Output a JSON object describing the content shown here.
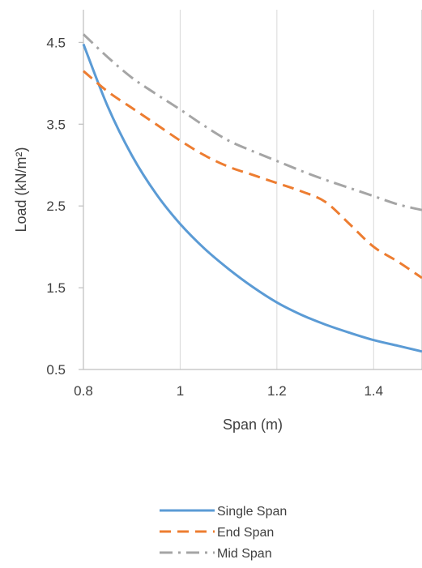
{
  "chart_data": {
    "type": "line",
    "title": "",
    "xlabel": "Span (m)",
    "ylabel": "Load (kN/m²)",
    "xlim": [
      0.8,
      1.5
    ],
    "ylim": [
      0.5,
      4.9
    ],
    "x_ticks": [
      0.8,
      1.0,
      1.2,
      1.4
    ],
    "x_tick_labels": [
      "0.8",
      "1",
      "1.2",
      "1.4"
    ],
    "y_ticks": [
      0.5,
      1.5,
      2.5,
      3.5,
      4.5
    ],
    "y_tick_labels": [
      "0.5",
      "1.5",
      "2.5",
      "3.5",
      "4.5"
    ],
    "grid": "vertical",
    "legend_position": "bottom",
    "series": [
      {
        "name": "Single Span",
        "color": "#5B9BD5",
        "dash": "solid",
        "points": [
          [
            0.8,
            4.48
          ],
          [
            0.85,
            3.72
          ],
          [
            0.9,
            3.12
          ],
          [
            0.95,
            2.65
          ],
          [
            1.0,
            2.28
          ],
          [
            1.05,
            1.98
          ],
          [
            1.1,
            1.73
          ],
          [
            1.15,
            1.51
          ],
          [
            1.2,
            1.32
          ],
          [
            1.25,
            1.17
          ],
          [
            1.3,
            1.05
          ],
          [
            1.35,
            0.95
          ],
          [
            1.4,
            0.86
          ],
          [
            1.45,
            0.79
          ],
          [
            1.5,
            0.72
          ]
        ]
      },
      {
        "name": "End Span",
        "color": "#ED7D31",
        "dash": "dash",
        "points": [
          [
            0.8,
            4.15
          ],
          [
            0.85,
            3.9
          ],
          [
            0.9,
            3.7
          ],
          [
            0.95,
            3.5
          ],
          [
            1.0,
            3.3
          ],
          [
            1.05,
            3.12
          ],
          [
            1.1,
            2.98
          ],
          [
            1.15,
            2.88
          ],
          [
            1.2,
            2.78
          ],
          [
            1.25,
            2.68
          ],
          [
            1.3,
            2.55
          ],
          [
            1.35,
            2.28
          ],
          [
            1.4,
            2.0
          ],
          [
            1.45,
            1.82
          ],
          [
            1.5,
            1.62
          ]
        ]
      },
      {
        "name": "Mid Span",
        "color": "#A5A5A5",
        "dash": "dashdot",
        "points": [
          [
            0.8,
            4.6
          ],
          [
            0.85,
            4.32
          ],
          [
            0.9,
            4.07
          ],
          [
            0.95,
            3.87
          ],
          [
            1.0,
            3.68
          ],
          [
            1.05,
            3.48
          ],
          [
            1.1,
            3.3
          ],
          [
            1.15,
            3.17
          ],
          [
            1.2,
            3.05
          ],
          [
            1.25,
            2.93
          ],
          [
            1.3,
            2.82
          ],
          [
            1.35,
            2.72
          ],
          [
            1.4,
            2.62
          ],
          [
            1.45,
            2.52
          ],
          [
            1.5,
            2.45
          ]
        ]
      }
    ]
  }
}
